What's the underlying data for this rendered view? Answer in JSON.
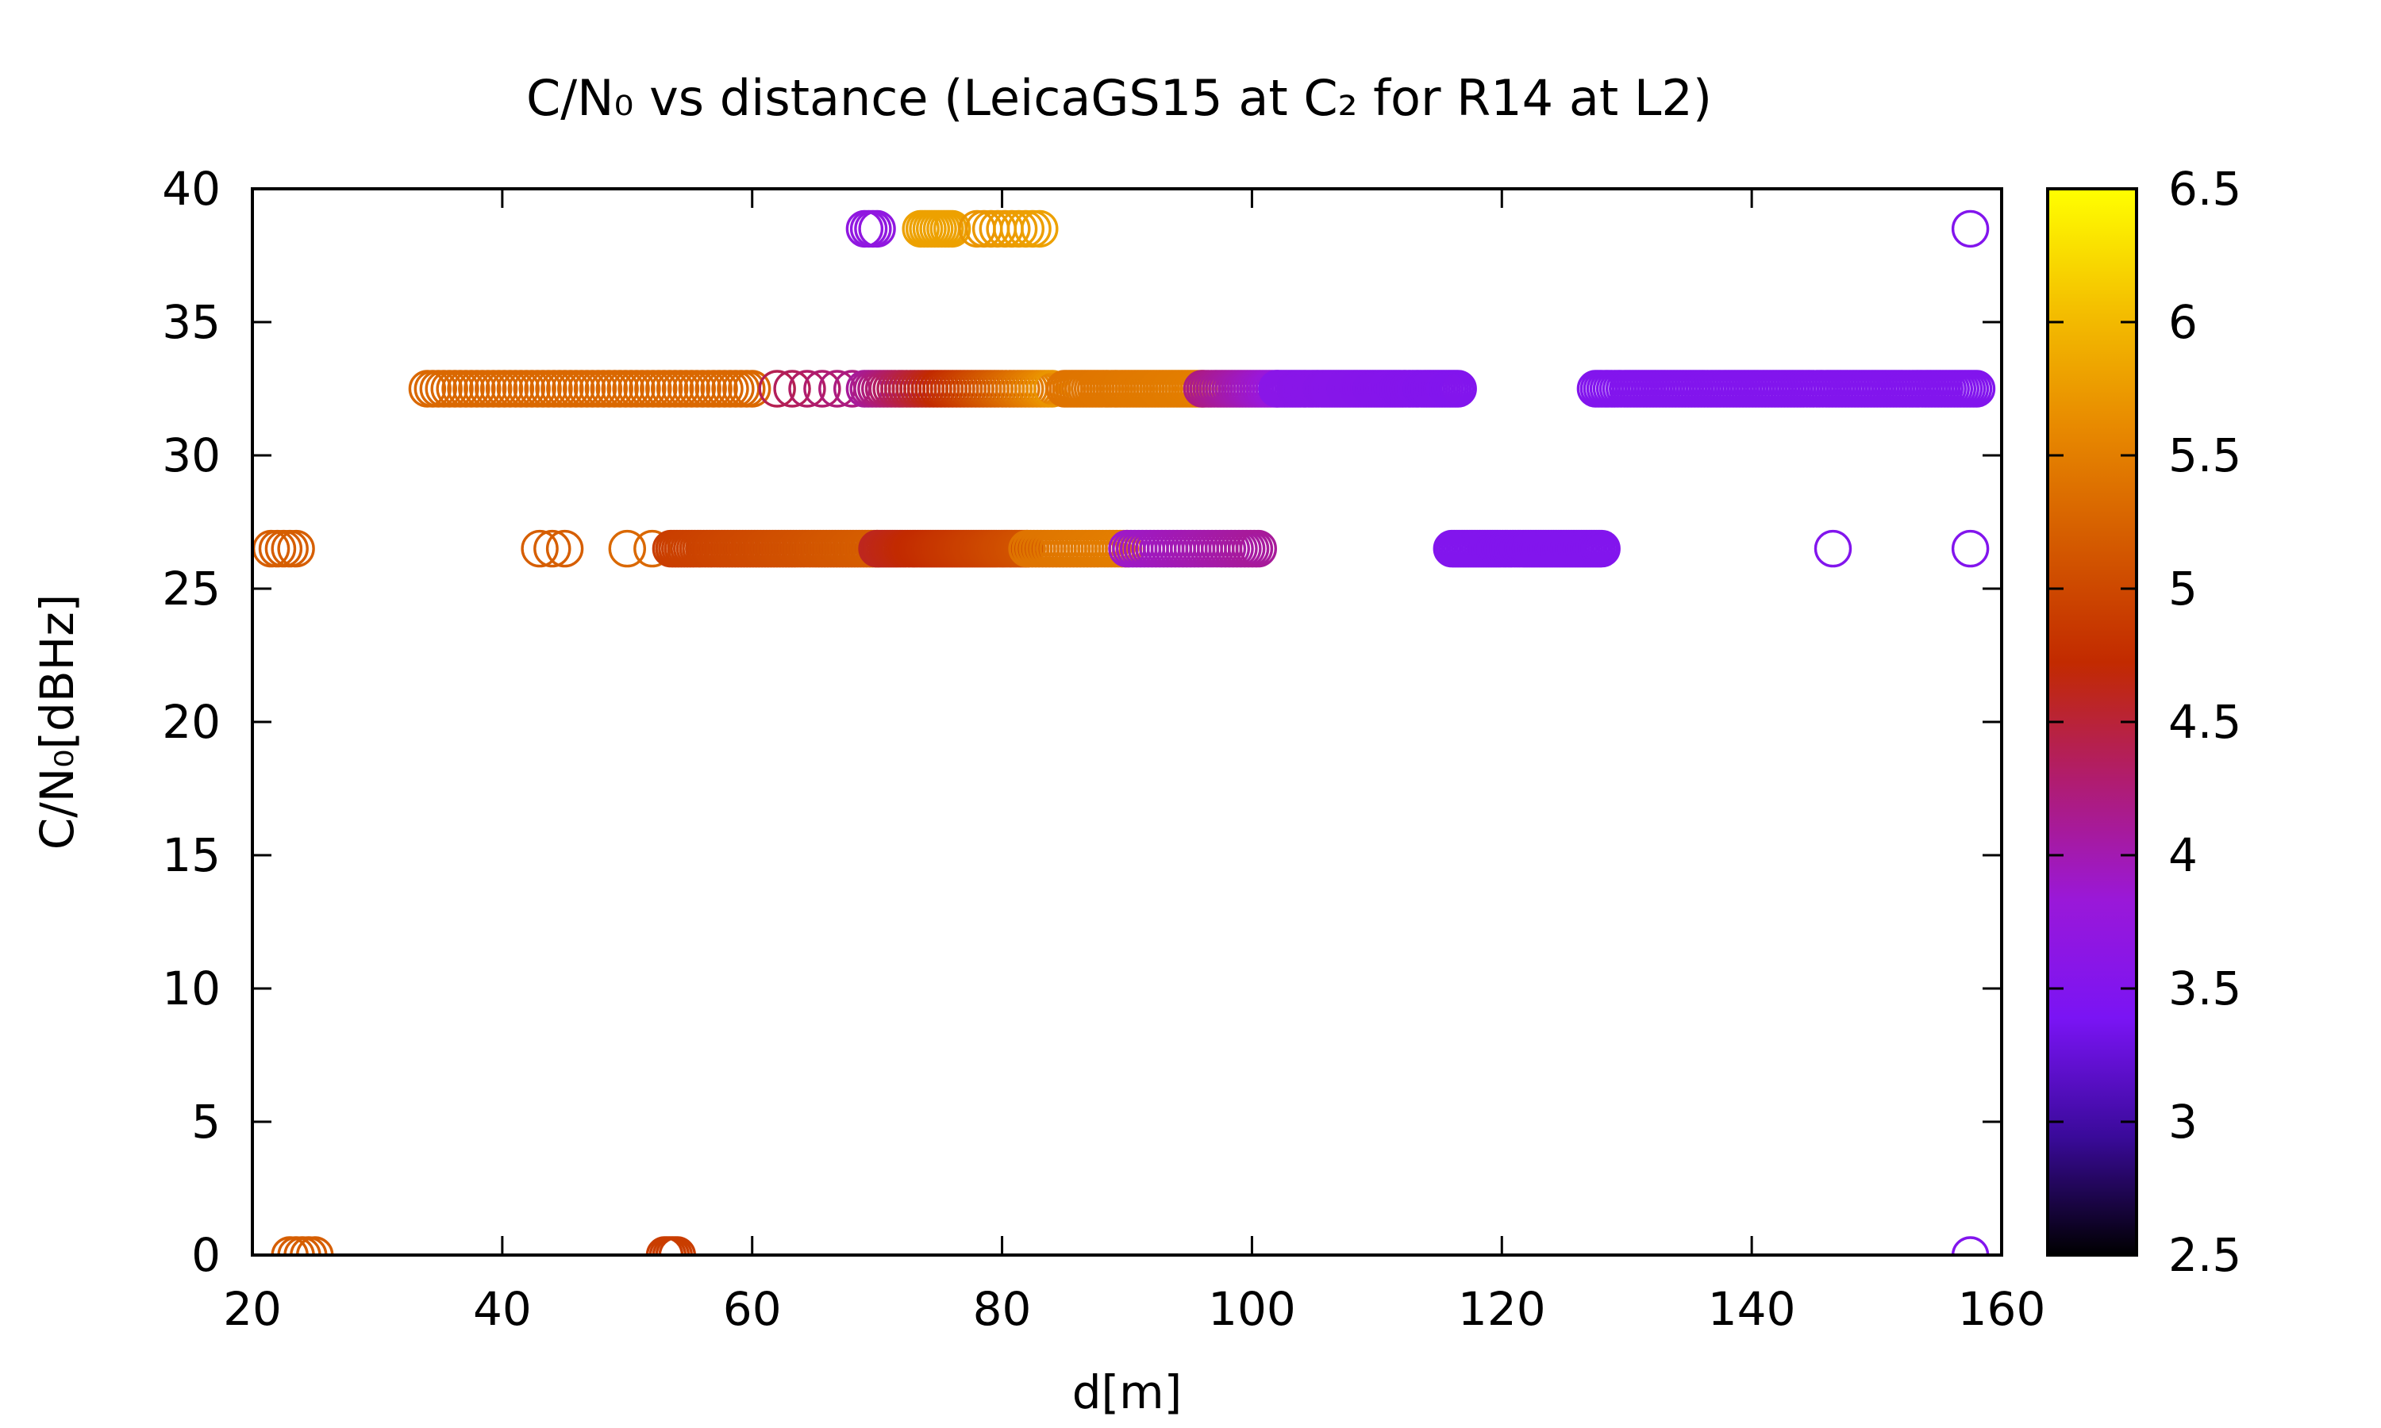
{
  "chart_data": {
    "type": "scatter",
    "title": "C/N₀ vs distance (LeicaGS15 at C₂ for R14 at L2)",
    "xlabel": "d[m]",
    "ylabel": "C/N₀[dBHz]",
    "xlim": [
      20,
      160
    ],
    "ylim": [
      0,
      40
    ],
    "xticks": [
      20,
      40,
      60,
      80,
      100,
      120,
      140,
      160
    ],
    "yticks": [
      0,
      5,
      10,
      15,
      20,
      25,
      30,
      35,
      40
    ],
    "colorbar": {
      "range": [
        2.5,
        6.5
      ],
      "ticks": [
        2.5,
        3,
        3.5,
        4,
        4.5,
        5,
        5.5,
        6,
        6.5
      ],
      "palette": [
        "#000000",
        "#3a0a9a",
        "#7a14f4",
        "#9a18d8",
        "#b01c70",
        "#c22a00",
        "#d45a00",
        "#e88a00",
        "#f4c000",
        "#ffff00"
      ]
    },
    "marker": "open-circle",
    "grid": false,
    "legend": "none",
    "clusters": [
      {
        "y": 38.5,
        "x_start": 69,
        "x_end": 70,
        "c_start": 3.7,
        "c_end": 3.7,
        "count": 4
      },
      {
        "y": 38.5,
        "x_start": 73.5,
        "x_end": 76,
        "c_start": 5.8,
        "c_end": 5.8,
        "count": 10
      },
      {
        "y": 38.5,
        "x_start": 78,
        "x_end": 83,
        "c_start": 5.7,
        "c_end": 5.8,
        "count": 10
      },
      {
        "y": 38.5,
        "x_start": 157.5,
        "x_end": 157.5,
        "c_start": 3.5,
        "c_end": 3.5,
        "count": 1
      },
      {
        "y": 32.5,
        "x_start": 34,
        "x_end": 60,
        "c_start": 5.3,
        "c_end": 5.3,
        "count": 60
      },
      {
        "y": 32.5,
        "x_start": 62,
        "x_end": 68,
        "c_start": 4.4,
        "c_end": 4.2,
        "count": 6
      },
      {
        "y": 32.5,
        "x_start": 69,
        "x_end": 84,
        "c_start": 4.1,
        "c_end": 5.7,
        "count": 50
      },
      {
        "y": 32.5,
        "x_start": 85,
        "x_end": 96,
        "c_start": 5.4,
        "c_end": 5.5,
        "count": 45
      },
      {
        "y": 32.5,
        "x_start": 96,
        "x_end": 102,
        "c_start": 4.2,
        "c_end": 3.8,
        "count": 25
      },
      {
        "y": 32.5,
        "x_start": 102,
        "x_end": 116.5,
        "c_start": 3.6,
        "c_end": 3.5,
        "count": 70
      },
      {
        "y": 32.5,
        "x_start": 127.5,
        "x_end": 158,
        "c_start": 3.5,
        "c_end": 3.5,
        "count": 120
      },
      {
        "y": 26.5,
        "x_start": 21.5,
        "x_end": 23.5,
        "c_start": 5.2,
        "c_end": 5.2,
        "count": 5
      },
      {
        "y": 26.5,
        "x_start": 43,
        "x_end": 45,
        "c_start": 5.2,
        "c_end": 5.2,
        "count": 3
      },
      {
        "y": 26.5,
        "x_start": 50,
        "x_end": 52,
        "c_start": 5.3,
        "c_end": 5.3,
        "count": 2
      },
      {
        "y": 26.5,
        "x_start": 53.5,
        "x_end": 70,
        "c_start": 4.9,
        "c_end": 5.2,
        "count": 70
      },
      {
        "y": 26.5,
        "x_start": 70,
        "x_end": 82,
        "c_start": 4.6,
        "c_end": 5.1,
        "count": 60
      },
      {
        "y": 26.5,
        "x_start": 82,
        "x_end": 90,
        "c_start": 5.4,
        "c_end": 5.5,
        "count": 30
      },
      {
        "y": 26.5,
        "x_start": 90,
        "x_end": 100.5,
        "c_start": 3.9,
        "c_end": 4.1,
        "count": 35
      },
      {
        "y": 26.5,
        "x_start": 116,
        "x_end": 128,
        "c_start": 3.5,
        "c_end": 3.5,
        "count": 60
      },
      {
        "y": 26.5,
        "x_start": 146.5,
        "x_end": 146.5,
        "c_start": 3.5,
        "c_end": 3.5,
        "count": 1
      },
      {
        "y": 26.5,
        "x_start": 157.5,
        "x_end": 157.5,
        "c_start": 3.5,
        "c_end": 3.5,
        "count": 1
      },
      {
        "y": 0,
        "x_start": 23,
        "x_end": 25,
        "c_start": 5.2,
        "c_end": 5.2,
        "count": 5
      },
      {
        "y": 0,
        "x_start": 53,
        "x_end": 54,
        "c_start": 4.9,
        "c_end": 4.9,
        "count": 5
      },
      {
        "y": 0,
        "x_start": 157.5,
        "x_end": 157.5,
        "c_start": 3.5,
        "c_end": 3.5,
        "count": 1
      }
    ]
  }
}
